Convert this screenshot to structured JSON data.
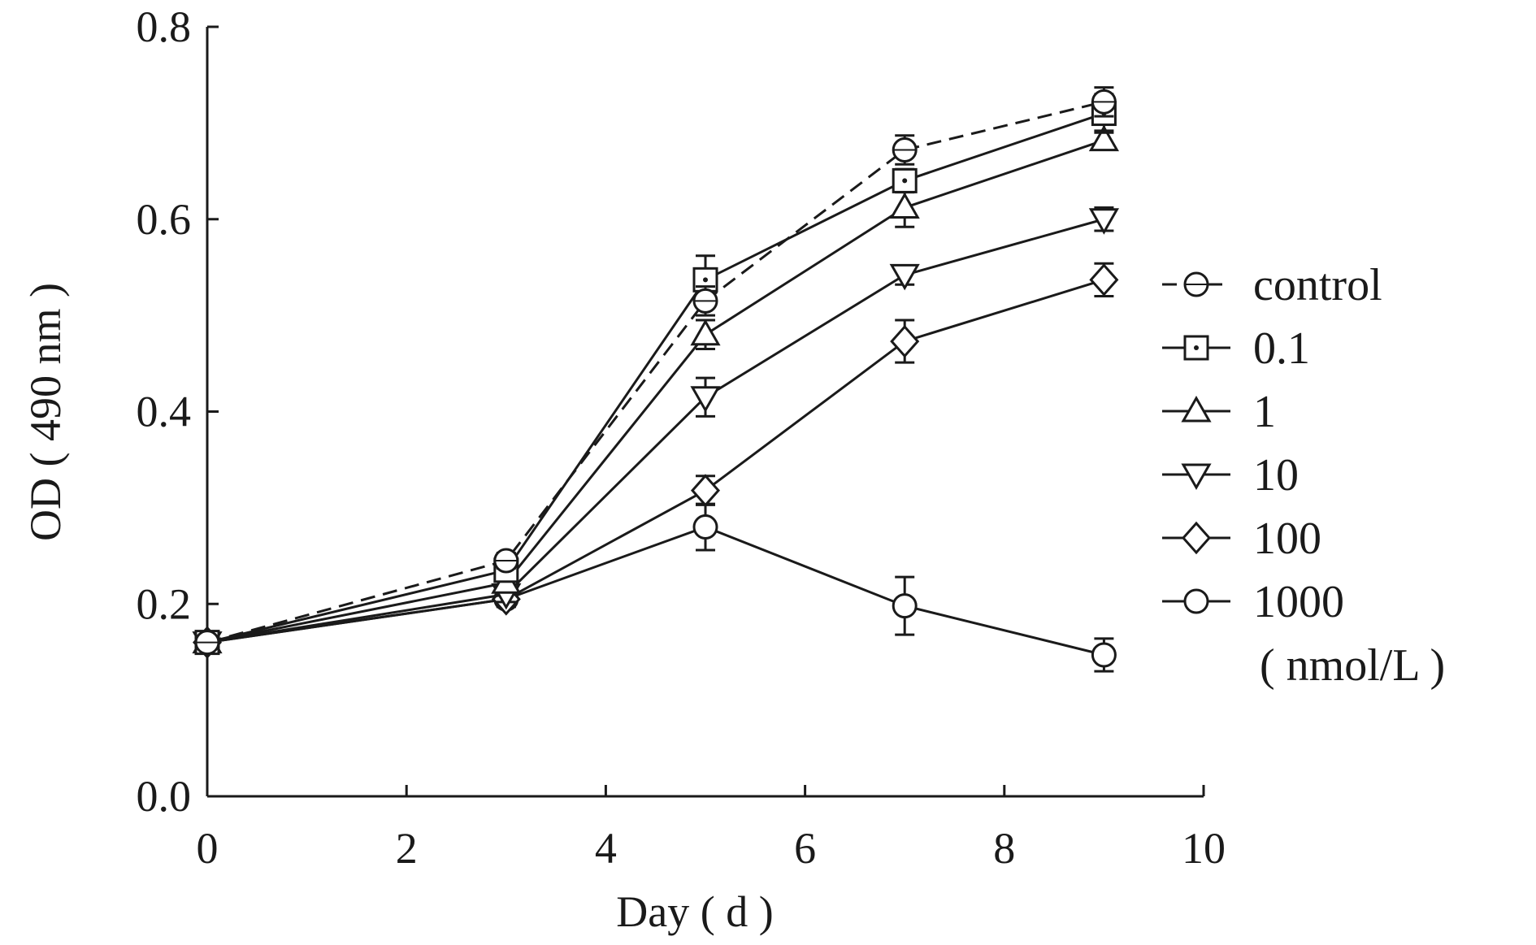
{
  "chart_data": {
    "type": "line",
    "xlabel": "Day ( d )",
    "ylabel": "OD ( 490 nm )",
    "xlim": [
      0,
      10
    ],
    "ylim": [
      0,
      0.8
    ],
    "xticks": [
      0,
      2,
      4,
      6,
      8,
      10
    ],
    "xtick_labels": [
      "0",
      "2",
      "4",
      "6",
      "8",
      "10"
    ],
    "yticks": [
      0,
      0.2,
      0.4,
      0.6,
      0.8
    ],
    "ytick_labels": [
      "0.0",
      "0.2",
      "0.4",
      "0.6",
      "0.8"
    ],
    "grid": false,
    "legend_position": "right",
    "legend_unit": "( nmol/L )",
    "x": [
      0,
      3,
      5,
      7,
      9
    ],
    "series": [
      {
        "name": "control",
        "marker": "circle-dot",
        "dashed": true,
        "values": [
          0.16,
          0.245,
          0.515,
          0.672,
          0.722
        ],
        "errors": [
          0.008,
          0.008,
          0.015,
          0.015,
          0.015
        ]
      },
      {
        "name": "0.1",
        "marker": "square",
        "dashed": false,
        "values": [
          0.16,
          0.235,
          0.537,
          0.64,
          0.71
        ],
        "errors": [
          0.008,
          0.01,
          0.025,
          0.012,
          0.02
        ]
      },
      {
        "name": "1",
        "marker": "triangle-up",
        "dashed": false,
        "values": [
          0.16,
          0.222,
          0.48,
          0.612,
          0.682
        ],
        "errors": [
          0.008,
          0.01,
          0.015,
          0.02,
          0.01
        ]
      },
      {
        "name": "10",
        "marker": "triangle-down",
        "dashed": false,
        "values": [
          0.16,
          0.21,
          0.415,
          0.542,
          0.6
        ],
        "errors": [
          0.008,
          0.008,
          0.02,
          0.01,
          0.012
        ]
      },
      {
        "name": "100",
        "marker": "diamond",
        "dashed": false,
        "values": [
          0.16,
          0.205,
          0.318,
          0.473,
          0.537
        ],
        "errors": [
          0.008,
          0.008,
          0.015,
          0.022,
          0.017
        ]
      },
      {
        "name": "1000",
        "marker": "circle",
        "dashed": false,
        "values": [
          0.16,
          0.205,
          0.28,
          0.198,
          0.147
        ],
        "errors": [
          0.008,
          0.008,
          0.024,
          0.03,
          0.017
        ]
      }
    ]
  }
}
